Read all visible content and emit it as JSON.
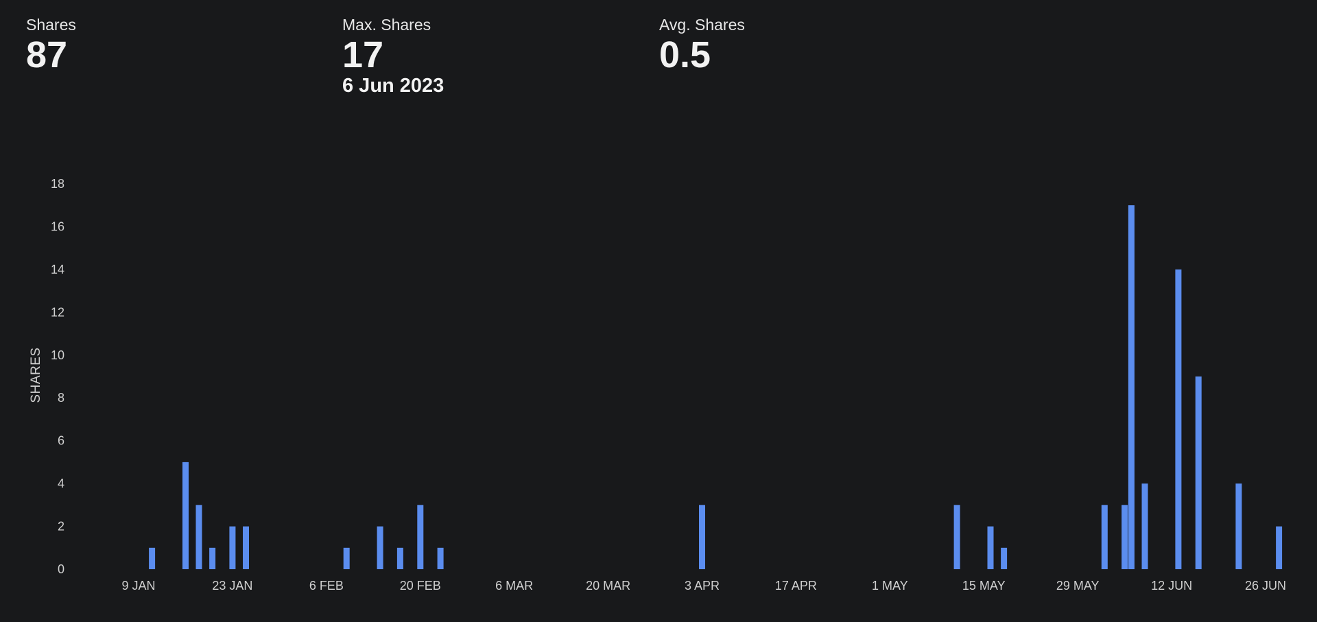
{
  "stats": {
    "shares": {
      "label": "Shares",
      "value": "87"
    },
    "max": {
      "label": "Max. Shares",
      "value": "17",
      "date": "6 Jun 2023"
    },
    "avg": {
      "label": "Avg. Shares",
      "value": "0.5"
    }
  },
  "colors": {
    "background": "#18191b",
    "bar": "#5b8def",
    "text": "#ececec"
  },
  "chart_data": {
    "type": "bar",
    "ylabel": "SHARES",
    "xlabel": "",
    "ylim": [
      0,
      18
    ],
    "y_ticks": [
      "0",
      "2",
      "4",
      "6",
      "8",
      "10",
      "12",
      "14",
      "16",
      "18"
    ],
    "x_tick_labels": [
      "9 JAN",
      "23 JAN",
      "6 FEB",
      "20 FEB",
      "6 MAR",
      "20 MAR",
      "3 APR",
      "17 APR",
      "1 MAY",
      "15 MAY",
      "29 MAY",
      "12 JUN",
      "26 JUN"
    ],
    "x_ticks": [
      "2023-01-09",
      "2023-01-23",
      "2023-02-06",
      "2023-02-20",
      "2023-03-06",
      "2023-03-20",
      "2023-04-03",
      "2023-04-17",
      "2023-05-01",
      "2023-05-15",
      "2023-05-29",
      "2023-06-12",
      "2023-06-26"
    ],
    "points": [
      {
        "date": "2023-01-11",
        "value": 1
      },
      {
        "date": "2023-01-16",
        "value": 5
      },
      {
        "date": "2023-01-18",
        "value": 3
      },
      {
        "date": "2023-01-20",
        "value": 1
      },
      {
        "date": "2023-01-23",
        "value": 2
      },
      {
        "date": "2023-01-25",
        "value": 2
      },
      {
        "date": "2023-02-09",
        "value": 1
      },
      {
        "date": "2023-02-14",
        "value": 2
      },
      {
        "date": "2023-02-17",
        "value": 1
      },
      {
        "date": "2023-02-20",
        "value": 3
      },
      {
        "date": "2023-02-23",
        "value": 1
      },
      {
        "date": "2023-04-03",
        "value": 3
      },
      {
        "date": "2023-05-11",
        "value": 3
      },
      {
        "date": "2023-05-16",
        "value": 2
      },
      {
        "date": "2023-05-18",
        "value": 1
      },
      {
        "date": "2023-06-02",
        "value": 3
      },
      {
        "date": "2023-06-05",
        "value": 3
      },
      {
        "date": "2023-06-06",
        "value": 17
      },
      {
        "date": "2023-06-08",
        "value": 4
      },
      {
        "date": "2023-06-13",
        "value": 14
      },
      {
        "date": "2023-06-16",
        "value": 9
      },
      {
        "date": "2023-06-22",
        "value": 4
      },
      {
        "date": "2023-06-28",
        "value": 2
      }
    ]
  }
}
